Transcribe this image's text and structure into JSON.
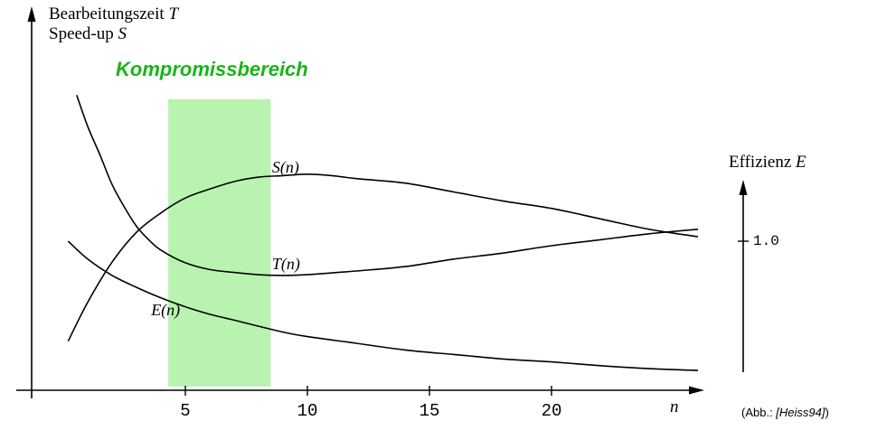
{
  "y_axis_title": {
    "line1": "Bearbeitungszeit",
    "line1_var": "T",
    "line2": "Speed-up",
    "line2_var": "S"
  },
  "right_axis": {
    "title": "Effizienz",
    "title_var": "E",
    "tick_label": "1.0"
  },
  "credit": {
    "prefix": "(Abb.: ",
    "ref": "[Heiss94]",
    "suffix": ")"
  },
  "colors": {
    "band_fill": "#b8f3b0",
    "band_label": "#17b517",
    "curve": "#000000",
    "axis": "#000000"
  },
  "chart_data": {
    "type": "line",
    "title": "",
    "xlabel": "n",
    "ylabel_left": "Bearbeitungszeit T / Speed-up S",
    "ylabel_right": "Effizienz E",
    "xlim": [
      -1.3,
      26.5
    ],
    "ylim": [
      0,
      2.35
    ],
    "grid": false,
    "x_ticks": [
      {
        "value": 5,
        "label": "5"
      },
      {
        "value": 10,
        "label": "10"
      },
      {
        "value": 15,
        "label": "15"
      },
      {
        "value": 20,
        "label": "20"
      }
    ],
    "right_axis_ticks": [
      {
        "value": 1.0,
        "label": "1.0"
      }
    ],
    "band": {
      "label": "Kompromissbereich",
      "n_start": 4.3,
      "n_end": 8.5
    },
    "series": [
      {
        "name": "S(n)",
        "label_pos": [
          8.55,
          1.56
        ],
        "points": [
          [
            0.2,
            0.33
          ],
          [
            1,
            0.59
          ],
          [
            2,
            0.86
          ],
          [
            3,
            1.06
          ],
          [
            4,
            1.19
          ],
          [
            5,
            1.29
          ],
          [
            6,
            1.35
          ],
          [
            7,
            1.4
          ],
          [
            8,
            1.43
          ],
          [
            9,
            1.44
          ],
          [
            10,
            1.45
          ],
          [
            11,
            1.44
          ],
          [
            12,
            1.42
          ],
          [
            14,
            1.39
          ],
          [
            16,
            1.33
          ],
          [
            18,
            1.27
          ],
          [
            20,
            1.22
          ],
          [
            22,
            1.15
          ],
          [
            24,
            1.08
          ],
          [
            26,
            1.03
          ]
        ]
      },
      {
        "name": "T(n)",
        "label_pos": [
          8.55,
          0.91
        ],
        "points": [
          [
            0.55,
            1.98
          ],
          [
            1,
            1.77
          ],
          [
            1.5,
            1.58
          ],
          [
            2,
            1.38
          ],
          [
            2.5,
            1.23
          ],
          [
            3,
            1.1
          ],
          [
            3.5,
            1.01
          ],
          [
            4,
            0.94
          ],
          [
            5,
            0.855
          ],
          [
            6,
            0.81
          ],
          [
            7,
            0.79
          ],
          [
            8,
            0.775
          ],
          [
            9,
            0.77
          ],
          [
            10,
            0.775
          ],
          [
            12,
            0.8
          ],
          [
            14,
            0.83
          ],
          [
            16,
            0.88
          ],
          [
            18,
            0.92
          ],
          [
            20,
            0.97
          ],
          [
            22,
            1.01
          ],
          [
            24,
            1.05
          ],
          [
            26,
            1.08
          ]
        ]
      },
      {
        "name": "E(n)",
        "label_pos": [
          3.6,
          0.6
        ],
        "points": [
          [
            0.2,
            1.0
          ],
          [
            1,
            0.88
          ],
          [
            2,
            0.77
          ],
          [
            3,
            0.69
          ],
          [
            4,
            0.62
          ],
          [
            5,
            0.56
          ],
          [
            6,
            0.51
          ],
          [
            7,
            0.47
          ],
          [
            8,
            0.43
          ],
          [
            9,
            0.39
          ],
          [
            10,
            0.36
          ],
          [
            12,
            0.315
          ],
          [
            14,
            0.27
          ],
          [
            16,
            0.24
          ],
          [
            18,
            0.21
          ],
          [
            20,
            0.19
          ],
          [
            22,
            0.165
          ],
          [
            24,
            0.145
          ],
          [
            26,
            0.133
          ]
        ]
      }
    ]
  }
}
